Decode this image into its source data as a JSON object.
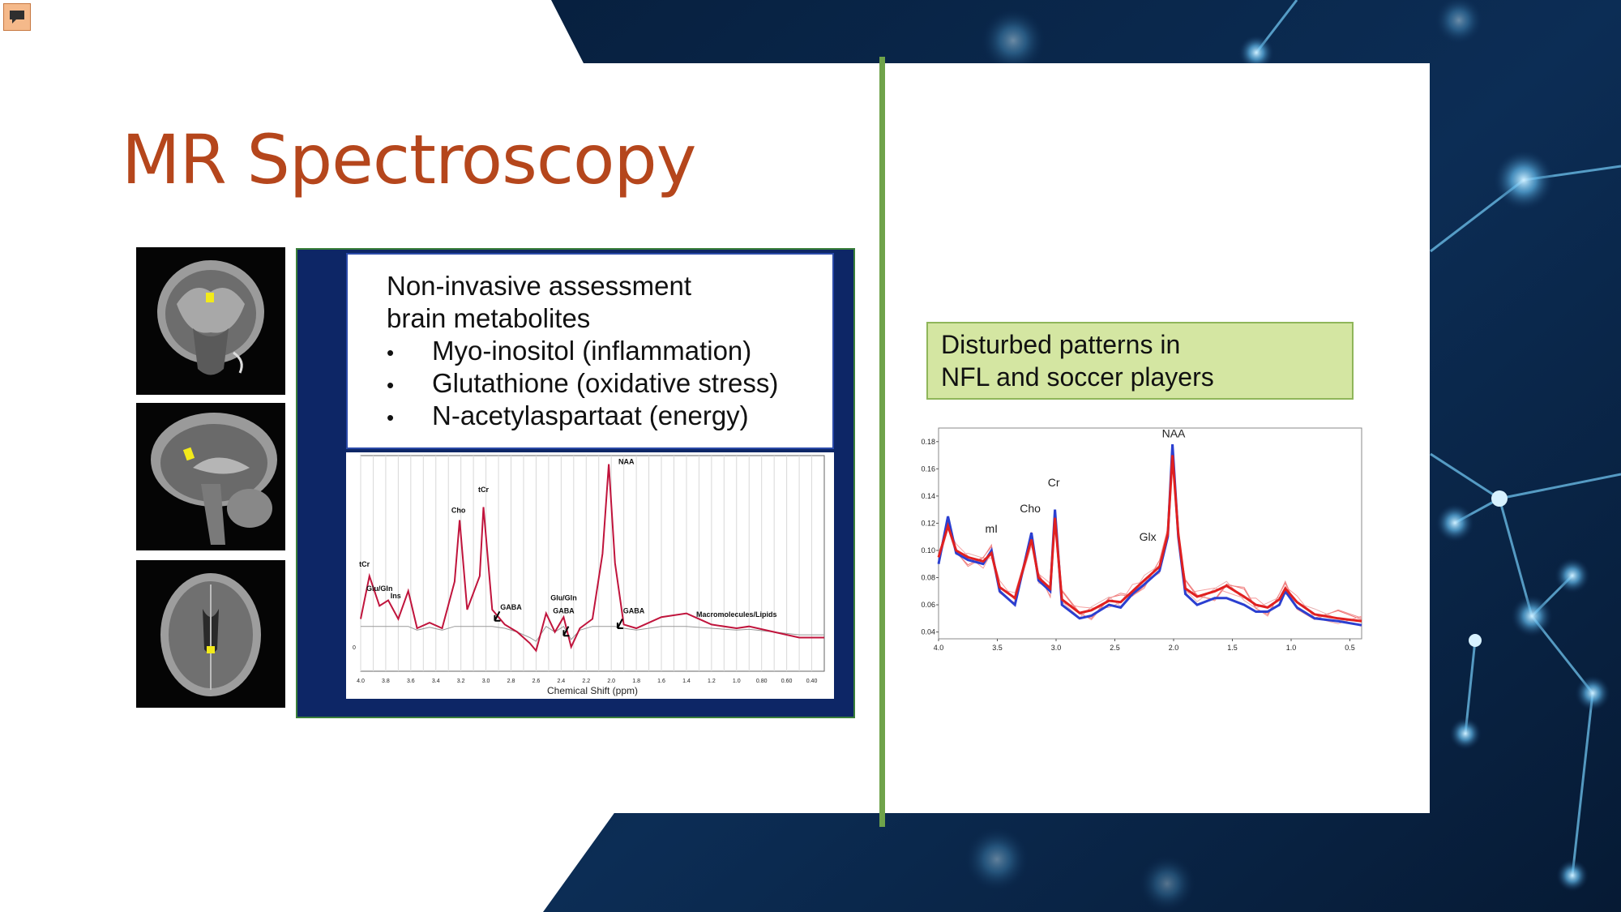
{
  "slide": {
    "title": "MR Spectroscopy",
    "colors": {
      "title": "#b5461c",
      "navy": "#0d2666",
      "note_bg": "#d4e6a2",
      "divider": "#6fa34a"
    },
    "comment_icon": "speech-bubble-icon",
    "brain_images": [
      {
        "view": "coronal"
      },
      {
        "view": "sagittal"
      },
      {
        "view": "axial"
      }
    ],
    "intro_lines": [
      "Non-invasive assessment",
      "brain metabolites"
    ],
    "bullets": [
      "Myo-inositol (inflammation)",
      "Glutathione (oxidative stress)",
      "N-acetylaspartaat (energy)"
    ],
    "note_lines": [
      "Disturbed patterns in",
      "NFL and soccer players"
    ]
  },
  "chart_data": [
    {
      "type": "line",
      "xlabel": "Chemical Shift (ppm)",
      "x_ticks": [
        "4.0",
        "3.8",
        "3.6",
        "3.4",
        "3.2",
        "3.0",
        "2.8",
        "2.6",
        "2.4",
        "2.2",
        "2.0",
        "1.8",
        "1.6",
        "1.4",
        "1.2",
        "1.0",
        "0.80",
        "0.60",
        "0.40"
      ],
      "xlim": [
        4.0,
        0.3
      ],
      "x_reversed": true,
      "grid": "vertical",
      "annotations": [
        "tCr",
        "Glu/Gln",
        "Ins",
        "Cho",
        "tCr",
        "GABA",
        "Glu/Gln",
        "GABA",
        "NAA",
        "GABA",
        "Macromolecules/Lipids"
      ],
      "y_tick": "0",
      "series": [
        {
          "x": [
            4.0,
            3.93,
            3.85,
            3.78,
            3.7,
            3.62,
            3.55,
            3.45,
            3.35,
            3.25,
            3.21,
            3.15,
            3.05,
            3.02,
            2.95,
            2.85,
            2.75,
            2.65,
            2.6,
            2.52,
            2.45,
            2.38,
            2.32,
            2.25,
            2.15,
            2.07,
            2.02,
            1.97,
            1.9,
            1.8,
            1.6,
            1.4,
            1.2,
            1.0,
            0.9,
            0.7,
            0.5,
            0.3
          ],
          "y": [
            0.15,
            0.38,
            0.22,
            0.25,
            0.15,
            0.3,
            0.1,
            0.13,
            0.1,
            0.35,
            0.68,
            0.2,
            0.38,
            0.75,
            0.2,
            0.12,
            0.08,
            0.02,
            -0.02,
            0.18,
            0.08,
            0.16,
            0.0,
            0.1,
            0.15,
            0.5,
            0.98,
            0.45,
            0.12,
            0.1,
            0.16,
            0.18,
            0.12,
            0.1,
            0.11,
            0.08,
            0.05,
            0.05
          ]
        }
      ]
    },
    {
      "type": "line",
      "x_ticks": [
        "4.0",
        "3.5",
        "3.0",
        "2.5",
        "2.0",
        "1.5",
        "1.0",
        "0.5"
      ],
      "xlim": [
        4.0,
        0.4
      ],
      "x_reversed": true,
      "y_ticks": [
        "0.04",
        "0.06",
        "0.08",
        "0.10",
        "0.12",
        "0.14",
        "0.16",
        "0.18"
      ],
      "ylim": [
        0.035,
        0.19
      ],
      "annotations": [
        "mI",
        "Cho",
        "Cr",
        "Glx",
        "NAA"
      ],
      "series": [
        {
          "color": "#2b3fd0",
          "x": [
            4.0,
            3.92,
            3.85,
            3.75,
            3.62,
            3.55,
            3.48,
            3.35,
            3.21,
            3.15,
            3.05,
            3.01,
            2.95,
            2.8,
            2.7,
            2.55,
            2.45,
            2.35,
            2.25,
            2.12,
            2.05,
            2.01,
            1.96,
            1.9,
            1.8,
            1.65,
            1.55,
            1.4,
            1.3,
            1.2,
            1.1,
            1.05,
            0.95,
            0.8,
            0.6,
            0.4
          ],
          "y": [
            0.09,
            0.125,
            0.098,
            0.093,
            0.09,
            0.1,
            0.07,
            0.06,
            0.113,
            0.078,
            0.07,
            0.13,
            0.06,
            0.05,
            0.052,
            0.06,
            0.058,
            0.068,
            0.075,
            0.085,
            0.11,
            0.178,
            0.11,
            0.068,
            0.06,
            0.065,
            0.065,
            0.06,
            0.055,
            0.055,
            0.06,
            0.07,
            0.058,
            0.05,
            0.048,
            0.045
          ]
        },
        {
          "color": "#e02020",
          "x": [
            4.0,
            3.92,
            3.85,
            3.75,
            3.62,
            3.55,
            3.48,
            3.35,
            3.21,
            3.15,
            3.05,
            3.01,
            2.95,
            2.8,
            2.7,
            2.55,
            2.45,
            2.35,
            2.25,
            2.12,
            2.05,
            2.01,
            1.96,
            1.9,
            1.8,
            1.65,
            1.55,
            1.4,
            1.3,
            1.2,
            1.1,
            1.05,
            0.95,
            0.8,
            0.6,
            0.4
          ],
          "y": [
            0.095,
            0.118,
            0.1,
            0.095,
            0.092,
            0.098,
            0.073,
            0.065,
            0.108,
            0.08,
            0.072,
            0.124,
            0.064,
            0.054,
            0.056,
            0.063,
            0.062,
            0.07,
            0.078,
            0.088,
            0.112,
            0.17,
            0.112,
            0.072,
            0.066,
            0.07,
            0.074,
            0.066,
            0.06,
            0.058,
            0.064,
            0.072,
            0.062,
            0.053,
            0.05,
            0.048
          ]
        }
      ]
    }
  ]
}
